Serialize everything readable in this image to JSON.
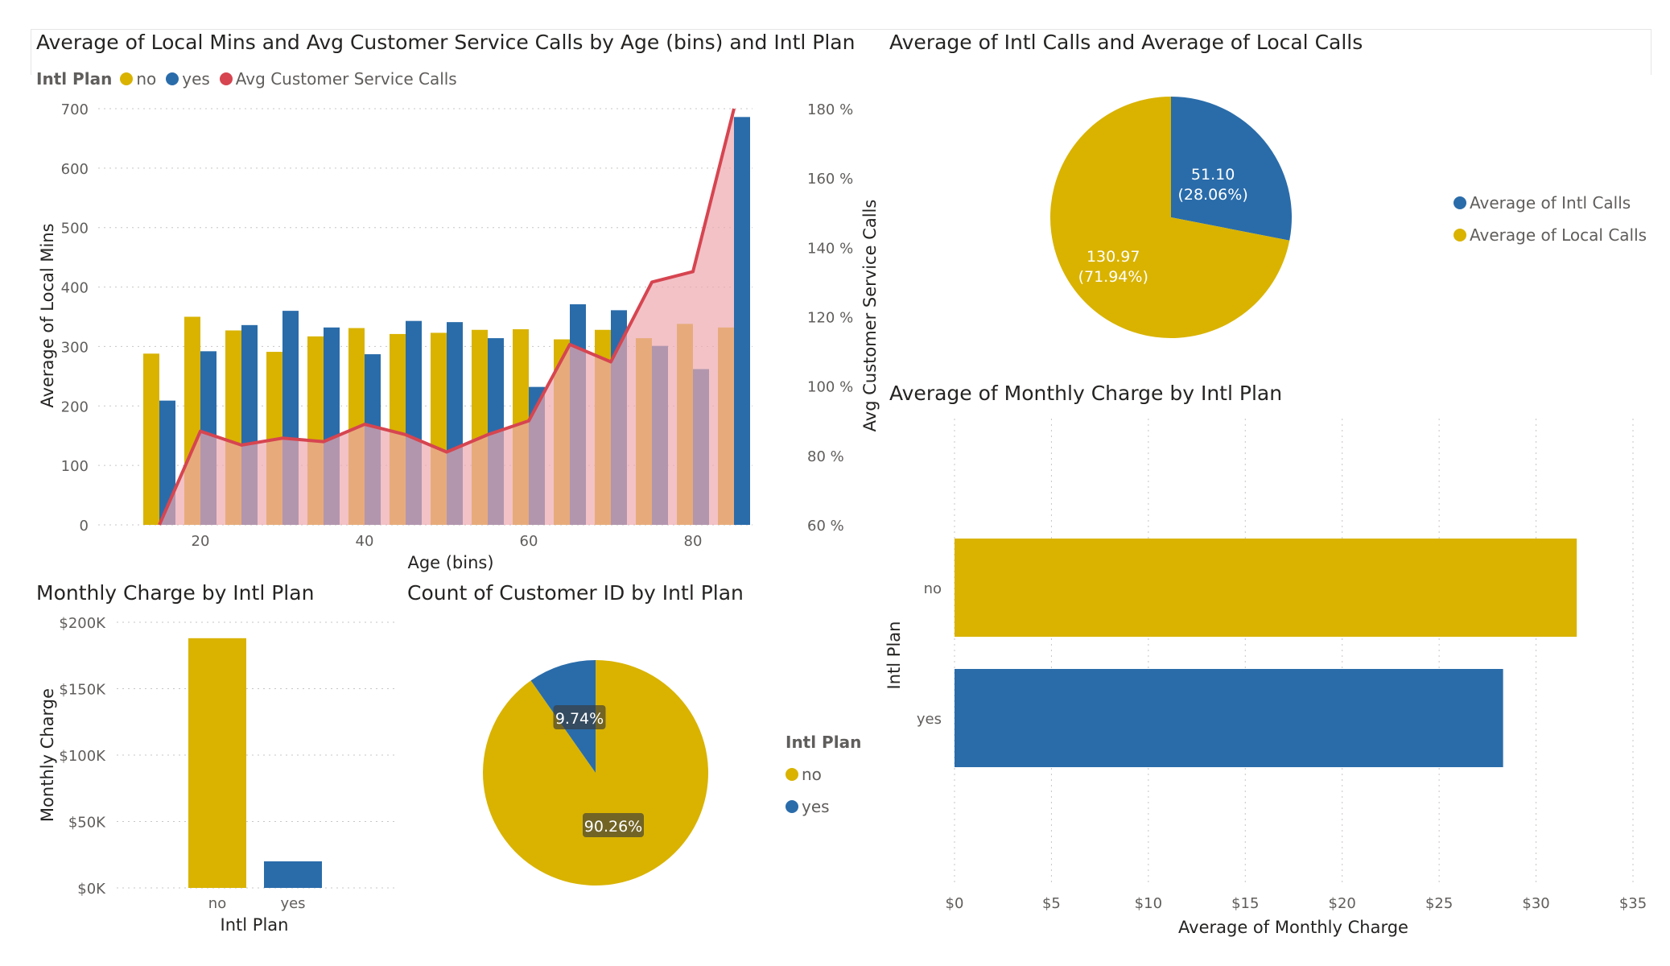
{
  "colors": {
    "no": "#D9B300",
    "yes": "#2A6CAA",
    "line": "#D64550",
    "area": "#EDA8AF",
    "text": "#252423",
    "axis": "#605e5c",
    "grid": "#c8c6c4"
  },
  "chart_data": [
    {
      "id": "combo",
      "type": "bar",
      "title": "Average of Local Mins and Avg Customer Service Calls by Age (bins) and Intl Plan",
      "legend_title": "Intl Plan",
      "xlabel": "Age (bins)",
      "ylabel": "Average of Local Mins",
      "y2label": "Avg Customer Service Calls",
      "x": [
        15,
        20,
        25,
        30,
        35,
        40,
        45,
        50,
        55,
        60,
        65,
        70,
        75,
        80,
        85
      ],
      "x_ticks": [
        "20",
        "40",
        "60",
        "80"
      ],
      "ylim": [
        0,
        700
      ],
      "y_ticks": [
        "0",
        "100",
        "200",
        "300",
        "400",
        "500",
        "600",
        "700"
      ],
      "y2lim": [
        60,
        180
      ],
      "y2_ticks": [
        "60 %",
        "80 %",
        "100 %",
        "120 %",
        "140 %",
        "160 %",
        "180 %"
      ],
      "series": [
        {
          "name": "no",
          "values": [
            288,
            350,
            327,
            291,
            317,
            331,
            321,
            323,
            328,
            329,
            312,
            328,
            314,
            338,
            332
          ]
        },
        {
          "name": "yes",
          "values": [
            209,
            292,
            336,
            360,
            332,
            287,
            343,
            341,
            314,
            232,
            371,
            361,
            301,
            262,
            686
          ]
        },
        {
          "name": "Avg Customer Service Calls",
          "values": [
            60,
            87,
            83,
            85,
            84,
            89,
            86,
            81,
            86,
            90,
            112,
            107,
            130,
            133,
            180
          ]
        }
      ],
      "grid": true,
      "legend": "top-left"
    },
    {
      "id": "pie_calls",
      "type": "pie",
      "title": "Average of Intl Calls and Average of Local Calls",
      "series": [
        {
          "name": "Average of Intl Calls",
          "value": 51.1,
          "label": "51.10",
          "pct": "(28.06%)"
        },
        {
          "name": "Average of Local Calls",
          "value": 130.97,
          "label": "130.97",
          "pct": "(71.94%)"
        }
      ],
      "legend": "right"
    },
    {
      "id": "hbar",
      "type": "bar",
      "orientation": "horizontal",
      "title": "Average of Monthly Charge by Intl Plan",
      "categories": [
        "no",
        "yes"
      ],
      "values": [
        32.1,
        28.3
      ],
      "xlabel": "Average of Monthly Charge",
      "ylabel": "Intl Plan",
      "xlim": [
        0,
        35
      ],
      "x_ticks": [
        "$0",
        "$5",
        "$10",
        "$15",
        "$20",
        "$25",
        "$30",
        "$35"
      ],
      "grid": true
    },
    {
      "id": "colbar",
      "type": "bar",
      "title": "Monthly Charge by Intl Plan",
      "categories": [
        "no",
        "yes"
      ],
      "values": [
        188000,
        20000
      ],
      "xlabel": "Intl Plan",
      "ylabel": "Monthly Charge",
      "ylim": [
        0,
        200000
      ],
      "y_ticks": [
        "$0K",
        "$50K",
        "$100K",
        "$150K",
        "$200K"
      ],
      "grid": true
    },
    {
      "id": "pie_count",
      "type": "pie",
      "title": "Count of Customer ID by Intl Plan",
      "legend_title": "Intl Plan",
      "series": [
        {
          "name": "no",
          "value": 90.26,
          "label": "90.26%"
        },
        {
          "name": "yes",
          "value": 9.74,
          "label": "9.74%"
        }
      ],
      "legend": "right"
    }
  ]
}
